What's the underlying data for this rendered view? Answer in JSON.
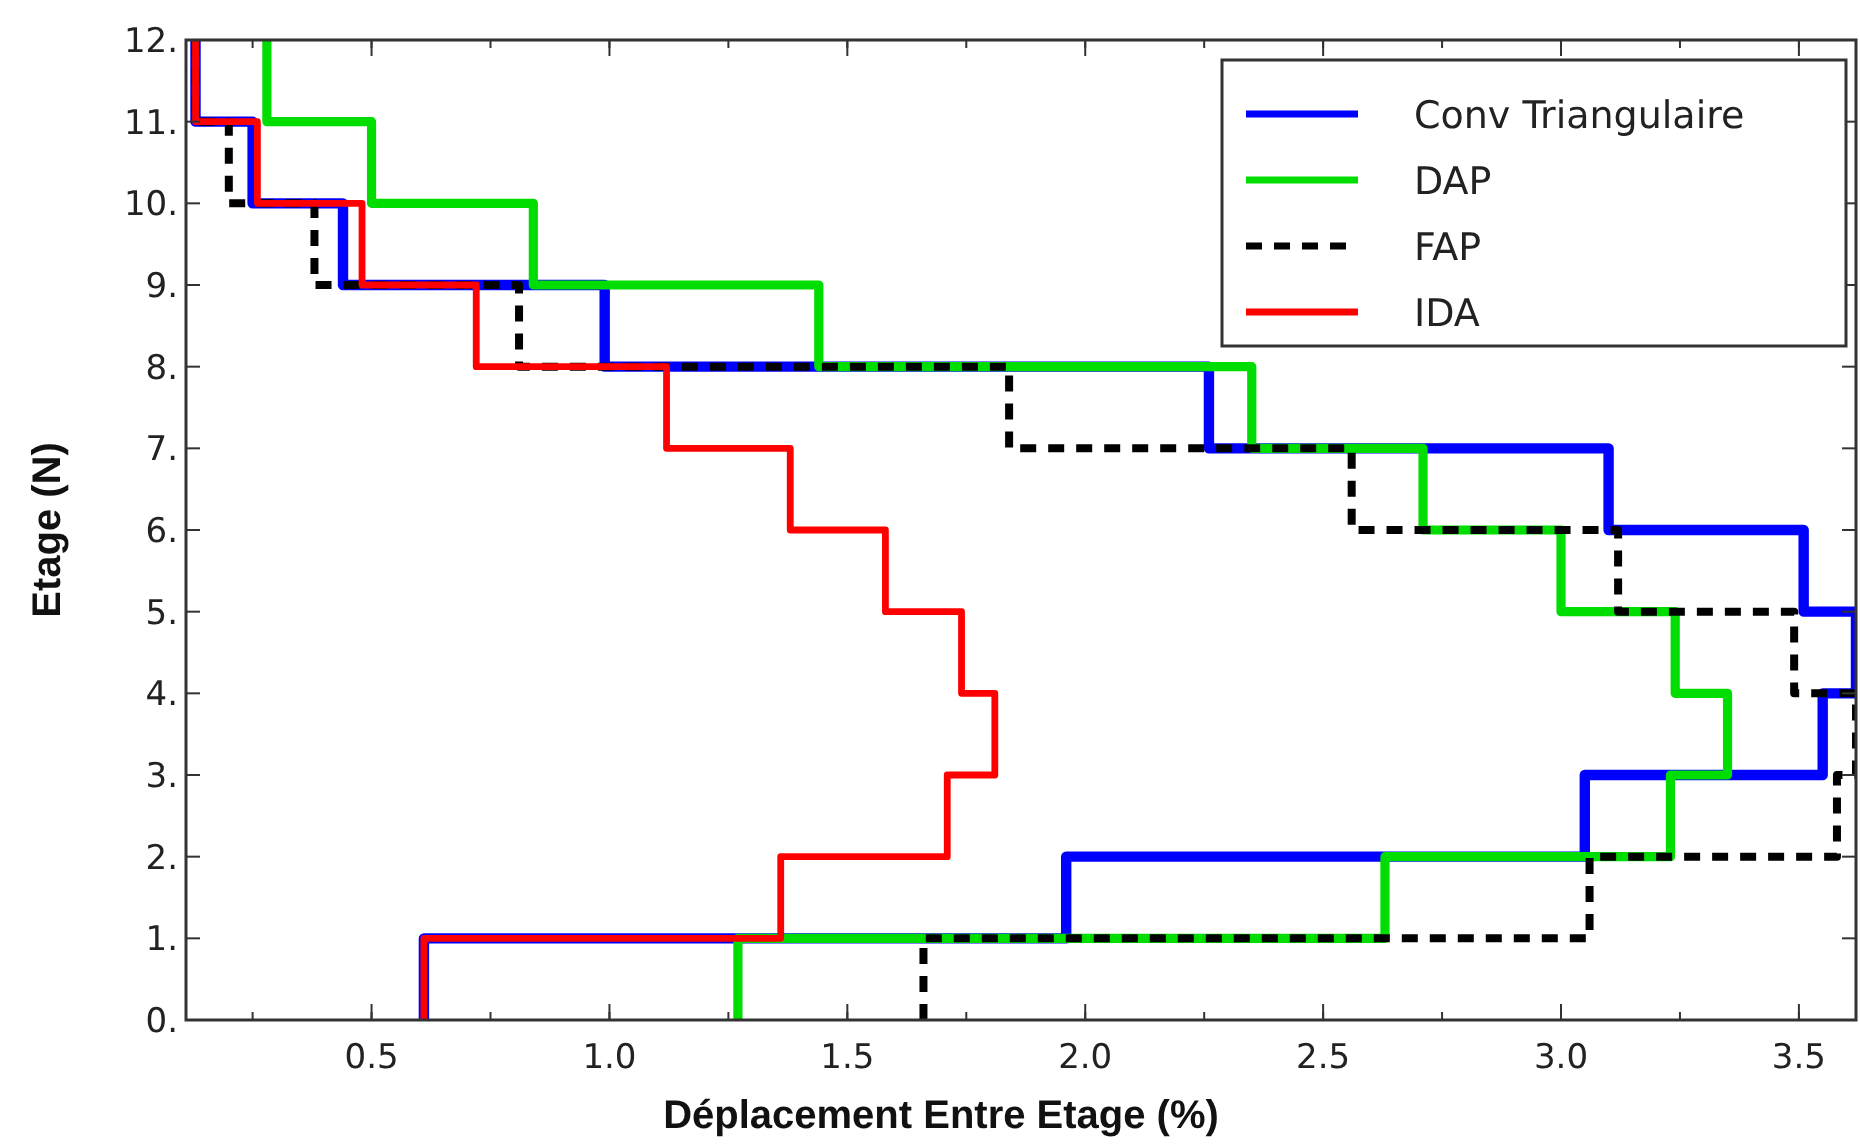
{
  "chart_data": {
    "type": "step",
    "xlabel": "Déplacement Entre Etage (%)",
    "ylabel": "Etage (N)",
    "xlim": [
      0.11,
      3.62
    ],
    "xticks": [
      0.5,
      {
        "value": 1,
        "label": "1.0"
      },
      1.5,
      {
        "value": 2,
        "label": "2.0"
      },
      2.5,
      {
        "value": 3,
        "label": "3.0"
      },
      3.5
    ],
    "ylim": [
      0,
      12
    ],
    "yticks": [
      {
        "value": 0,
        "label": "0."
      },
      {
        "value": 1,
        "label": "1."
      },
      {
        "value": 2,
        "label": "2."
      },
      {
        "value": 3,
        "label": "3."
      },
      {
        "value": 4,
        "label": "4."
      },
      {
        "value": 5,
        "label": "5."
      },
      {
        "value": 6,
        "label": "6."
      },
      {
        "value": 7,
        "label": "7."
      },
      {
        "value": 8,
        "label": "8."
      },
      {
        "value": 9,
        "label": "9."
      },
      {
        "value": 10,
        "label": "10."
      },
      {
        "value": 11,
        "label": "11."
      },
      {
        "value": 12,
        "label": "12."
      }
    ],
    "legend": "top right",
    "grid": false,
    "series": [
      {
        "name": "Conv Triangulaire",
        "color": "#0000ff",
        "line_style": "solid",
        "x": [
          0.61,
          1.96,
          3.05,
          3.55,
          3.62,
          3.51,
          3.1,
          2.26,
          0.99,
          0.44,
          0.25,
          0.13,
          0.13
        ],
        "values": [
          0,
          1,
          2,
          3,
          4,
          5,
          6,
          7,
          8,
          9,
          10,
          11,
          12
        ]
      },
      {
        "name": "DAP",
        "color": "#00dd00",
        "line_style": "solid",
        "x": [
          1.27,
          2.63,
          3.23,
          3.35,
          3.24,
          3.0,
          2.71,
          2.35,
          1.44,
          0.84,
          0.5,
          0.28,
          0.28
        ],
        "values": [
          0,
          1,
          2,
          3,
          4,
          5,
          6,
          7,
          8,
          9,
          10,
          11,
          12
        ]
      },
      {
        "name": "FAP",
        "color": "#000000",
        "line_style": "dashed",
        "x": [
          1.66,
          3.06,
          3.58,
          3.62,
          3.49,
          3.12,
          2.56,
          1.84,
          0.81,
          0.38,
          0.2,
          0.13,
          0.13
        ],
        "values": [
          0,
          1,
          2,
          3,
          4,
          5,
          6,
          7,
          8,
          9,
          10,
          11,
          12
        ]
      },
      {
        "name": "IDA",
        "color": "#ff0000",
        "line_style": "solid",
        "x": [
          0.61,
          1.36,
          1.71,
          1.81,
          1.74,
          1.58,
          1.38,
          1.12,
          0.72,
          0.48,
          0.26,
          0.13,
          0.13
        ],
        "values": [
          0,
          1,
          2,
          3,
          4,
          5,
          6,
          7,
          8,
          9,
          10,
          11,
          12
        ]
      }
    ]
  }
}
